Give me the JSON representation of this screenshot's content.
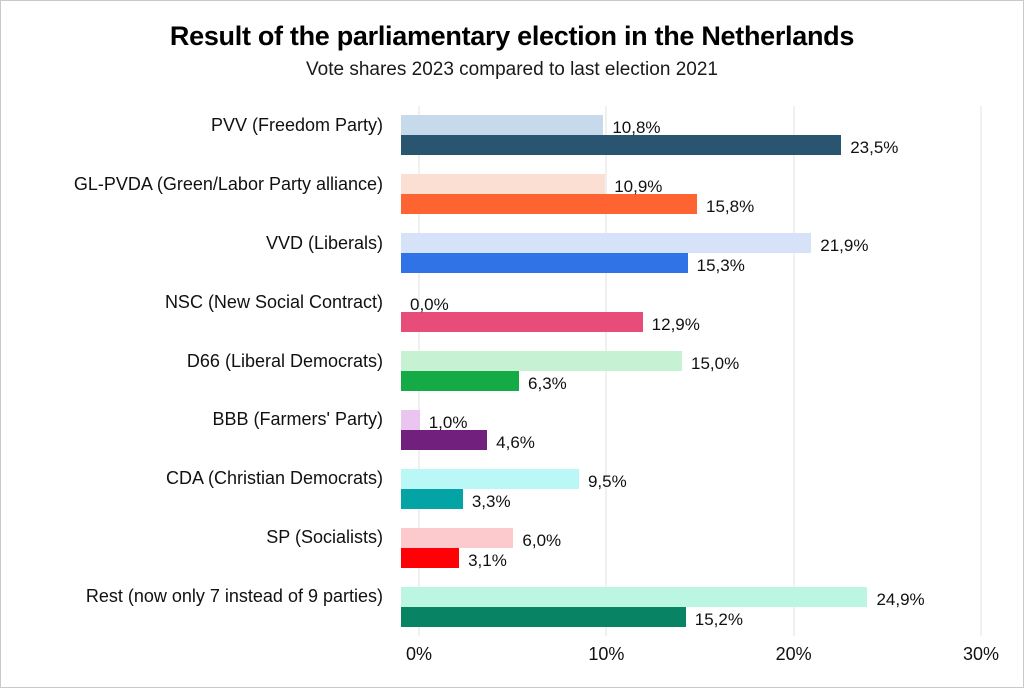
{
  "chart_data": {
    "type": "bar",
    "orientation": "horizontal",
    "title": "Result of the parliamentary election in the Netherlands",
    "subtitle": "Vote shares 2023 compared to last election 2021",
    "categories": [
      "PVV (Freedom Party)",
      "GL-PVDA (Green/Labor Party alliance)",
      "VVD (Liberals)",
      "NSC (New Social Contract)",
      "D66 (Liberal Democrats)",
      "BBB (Farmers' Party)",
      "CDA (Christian Democrats)",
      "SP (Socialists)",
      "Rest (now only 7 instead of 9 parties)"
    ],
    "series": [
      {
        "name": "2021",
        "position": "top-light-bar",
        "values": [
          10.8,
          10.9,
          21.9,
          0.0,
          15.0,
          1.0,
          9.5,
          6.0,
          24.9
        ],
        "labels": [
          "10,8%",
          "10,9%",
          "21,9%",
          "0,0%",
          "15,0%",
          "1,0%",
          "9,5%",
          "6,0%",
          "24,9%"
        ],
        "colors": [
          "#c7daec",
          "#fcdfd3",
          "#d6e2f8",
          "#f6d3de",
          "#c6f1d3",
          "#eac5f0",
          "#baf8f8",
          "#fccacc",
          "#baf6e1"
        ]
      },
      {
        "name": "2023",
        "position": "bottom-dark-bar",
        "values": [
          23.5,
          15.8,
          15.3,
          12.9,
          6.3,
          4.6,
          3.3,
          3.1,
          15.2
        ],
        "labels": [
          "23,5%",
          "15,8%",
          "15,3%",
          "12,9%",
          "6,3%",
          "4,6%",
          "3,3%",
          "3,1%",
          "15,2%"
        ],
        "colors": [
          "#2a5571",
          "#fe6431",
          "#2f73e6",
          "#e84c78",
          "#14ab47",
          "#71207e",
          "#04a4a6",
          "#fe0005",
          "#088465"
        ]
      }
    ],
    "xlim": [
      0,
      30
    ],
    "x_ticks": [
      {
        "value": 0,
        "label": "0%"
      },
      {
        "value": 10,
        "label": "10%"
      },
      {
        "value": 20,
        "label": "20%"
      },
      {
        "value": 30,
        "label": "30%"
      }
    ],
    "grid": "vertical-gridlines-on",
    "legend": "none",
    "value_label_format": "comma-decimal-percent",
    "colors": {
      "gridline": "#e2e2e2",
      "text": "#1a1a1a",
      "background": "#ffffff",
      "frame_border": "#c9c9c9"
    }
  }
}
